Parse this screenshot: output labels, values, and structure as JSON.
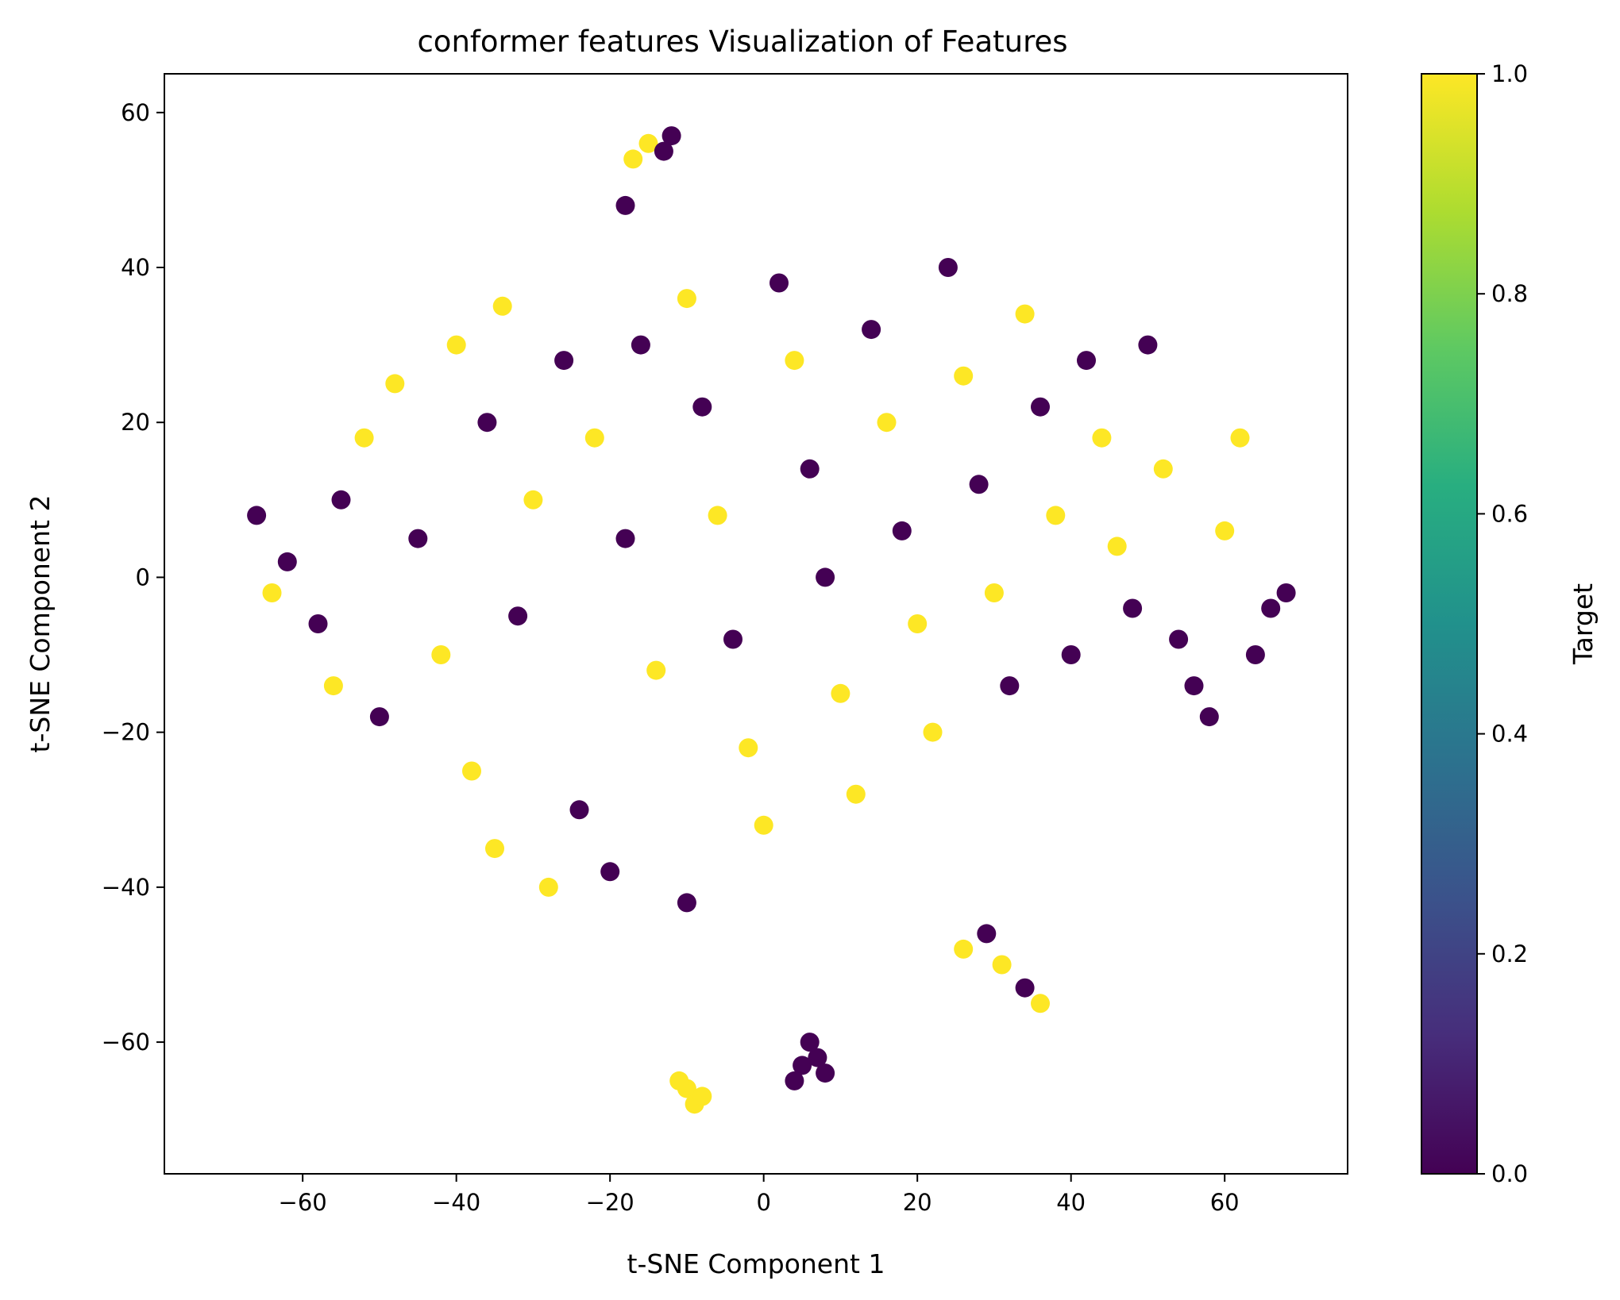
{
  "chart_data": {
    "type": "scatter",
    "title": "conformer features Visualization of Features",
    "xlabel": "t-SNE Component 1",
    "ylabel": "t-SNE Component 2",
    "xlim": [
      -78,
      76
    ],
    "ylim": [
      -77,
      65
    ],
    "xticks": [
      -60,
      -40,
      -20,
      0,
      20,
      40,
      60
    ],
    "yticks": [
      -60,
      -40,
      -20,
      0,
      20,
      40,
      60
    ],
    "x_tick_labels": [
      "−60",
      "−40",
      "−20",
      "0",
      "20",
      "40",
      "60"
    ],
    "y_tick_labels": [
      "−60",
      "−40",
      "−20",
      "0",
      "20",
      "40",
      "60"
    ],
    "grid": false,
    "colormap": "viridis",
    "colorbar": {
      "label": "Target",
      "range": [
        0.0,
        1.0
      ],
      "ticks": [
        0.0,
        0.2,
        0.4,
        0.6,
        0.8,
        1.0
      ],
      "tick_labels": [
        "0.0",
        "0.2",
        "0.4",
        "0.6",
        "0.8",
        "1.0"
      ]
    },
    "colors": {
      "target_0": "#440154",
      "target_1": "#fde725"
    },
    "points": [
      {
        "x": -66,
        "y": 8,
        "target": 0
      },
      {
        "x": -62,
        "y": 2,
        "target": 0
      },
      {
        "x": -58,
        "y": -6,
        "target": 0
      },
      {
        "x": -64,
        "y": -2,
        "target": 1
      },
      {
        "x": -55,
        "y": 10,
        "target": 0
      },
      {
        "x": -52,
        "y": 18,
        "target": 1
      },
      {
        "x": -48,
        "y": 25,
        "target": 1
      },
      {
        "x": -45,
        "y": 5,
        "target": 0
      },
      {
        "x": -42,
        "y": -10,
        "target": 1
      },
      {
        "x": -50,
        "y": -18,
        "target": 0
      },
      {
        "x": -56,
        "y": -14,
        "target": 1
      },
      {
        "x": -40,
        "y": 30,
        "target": 1
      },
      {
        "x": -36,
        "y": 20,
        "target": 0
      },
      {
        "x": -34,
        "y": 35,
        "target": 1
      },
      {
        "x": -30,
        "y": 10,
        "target": 1
      },
      {
        "x": -32,
        "y": -5,
        "target": 0
      },
      {
        "x": -38,
        "y": -25,
        "target": 1
      },
      {
        "x": -35,
        "y": -35,
        "target": 1
      },
      {
        "x": -28,
        "y": -40,
        "target": 1
      },
      {
        "x": -24,
        "y": -30,
        "target": 0
      },
      {
        "x": -20,
        "y": -38,
        "target": 0
      },
      {
        "x": -26,
        "y": 28,
        "target": 0
      },
      {
        "x": -22,
        "y": 18,
        "target": 1
      },
      {
        "x": -18,
        "y": 5,
        "target": 0
      },
      {
        "x": -14,
        "y": -12,
        "target": 1
      },
      {
        "x": -16,
        "y": 30,
        "target": 0
      },
      {
        "x": -10,
        "y": 36,
        "target": 1
      },
      {
        "x": -8,
        "y": 22,
        "target": 0
      },
      {
        "x": -6,
        "y": 8,
        "target": 1
      },
      {
        "x": -4,
        "y": -8,
        "target": 0
      },
      {
        "x": -2,
        "y": -22,
        "target": 1
      },
      {
        "x": 0,
        "y": -32,
        "target": 1
      },
      {
        "x": 2,
        "y": 38,
        "target": 0
      },
      {
        "x": 4,
        "y": 28,
        "target": 1
      },
      {
        "x": 6,
        "y": 14,
        "target": 0
      },
      {
        "x": 8,
        "y": 0,
        "target": 0
      },
      {
        "x": 10,
        "y": -15,
        "target": 1
      },
      {
        "x": 12,
        "y": -28,
        "target": 1
      },
      {
        "x": 14,
        "y": 32,
        "target": 0
      },
      {
        "x": 16,
        "y": 20,
        "target": 1
      },
      {
        "x": 18,
        "y": 6,
        "target": 0
      },
      {
        "x": 20,
        "y": -6,
        "target": 1
      },
      {
        "x": 22,
        "y": -20,
        "target": 1
      },
      {
        "x": 24,
        "y": 40,
        "target": 0
      },
      {
        "x": 26,
        "y": 26,
        "target": 1
      },
      {
        "x": 28,
        "y": 12,
        "target": 0
      },
      {
        "x": 30,
        "y": -2,
        "target": 1
      },
      {
        "x": 32,
        "y": -14,
        "target": 0
      },
      {
        "x": 34,
        "y": 34,
        "target": 1
      },
      {
        "x": 36,
        "y": 22,
        "target": 0
      },
      {
        "x": 38,
        "y": 8,
        "target": 1
      },
      {
        "x": 40,
        "y": -10,
        "target": 0
      },
      {
        "x": 42,
        "y": 28,
        "target": 0
      },
      {
        "x": 44,
        "y": 18,
        "target": 1
      },
      {
        "x": 46,
        "y": 4,
        "target": 1
      },
      {
        "x": 48,
        "y": -4,
        "target": 0
      },
      {
        "x": 50,
        "y": 30,
        "target": 0
      },
      {
        "x": 52,
        "y": 14,
        "target": 1
      },
      {
        "x": 54,
        "y": -8,
        "target": 0
      },
      {
        "x": 56,
        "y": -14,
        "target": 0
      },
      {
        "x": 58,
        "y": -18,
        "target": 0
      },
      {
        "x": 60,
        "y": 6,
        "target": 1
      },
      {
        "x": 62,
        "y": 18,
        "target": 1
      },
      {
        "x": 64,
        "y": -10,
        "target": 0
      },
      {
        "x": 66,
        "y": -4,
        "target": 0
      },
      {
        "x": 68,
        "y": -2,
        "target": 0
      },
      {
        "x": -15,
        "y": 56,
        "target": 1
      },
      {
        "x": -13,
        "y": 55,
        "target": 0
      },
      {
        "x": -17,
        "y": 54,
        "target": 1
      },
      {
        "x": -12,
        "y": 57,
        "target": 0
      },
      {
        "x": -18,
        "y": 48,
        "target": 0
      },
      {
        "x": -10,
        "y": -66,
        "target": 1
      },
      {
        "x": -9,
        "y": -68,
        "target": 1
      },
      {
        "x": -11,
        "y": -65,
        "target": 1
      },
      {
        "x": -8,
        "y": -67,
        "target": 1
      },
      {
        "x": 5,
        "y": -63,
        "target": 0
      },
      {
        "x": 7,
        "y": -62,
        "target": 0
      },
      {
        "x": 4,
        "y": -65,
        "target": 0
      },
      {
        "x": 8,
        "y": -64,
        "target": 0
      },
      {
        "x": 6,
        "y": -60,
        "target": 0
      },
      {
        "x": 26,
        "y": -48,
        "target": 1
      },
      {
        "x": 29,
        "y": -46,
        "target": 0
      },
      {
        "x": 31,
        "y": -50,
        "target": 1
      },
      {
        "x": 34,
        "y": -53,
        "target": 0
      },
      {
        "x": 36,
        "y": -55,
        "target": 1
      },
      {
        "x": -10,
        "y": -42,
        "target": 0
      }
    ]
  }
}
